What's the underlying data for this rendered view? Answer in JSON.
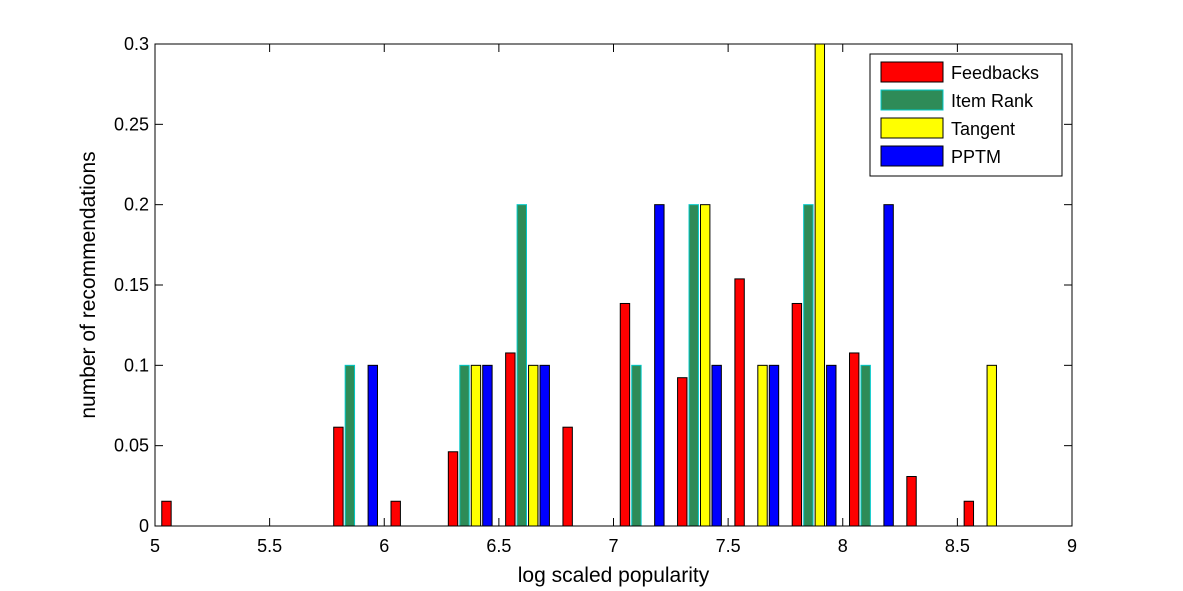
{
  "chart_data": {
    "type": "bar",
    "title": "",
    "xlabel": "log scaled popularity",
    "ylabel": "number of recommendations",
    "xlim": [
      5,
      9
    ],
    "ylim": [
      0,
      0.3
    ],
    "xticks": [
      "5",
      "5.5",
      "6",
      "6.5",
      "7",
      "7.5",
      "8",
      "8.5",
      "9"
    ],
    "yticks": [
      "0",
      "0.05",
      "0.1",
      "0.15",
      "0.2",
      "0.25",
      "0.3"
    ],
    "grid": false,
    "legend_position": "top-right",
    "bin_centers": [
      5.125,
      5.375,
      5.625,
      5.875,
      6.125,
      6.375,
      6.625,
      6.875,
      7.125,
      7.375,
      7.625,
      7.875,
      8.125,
      8.375,
      8.625,
      8.875
    ],
    "series": [
      {
        "name": "Feedbacks",
        "color": "#ff0000",
        "values": [
          0.0154,
          0,
          0,
          0.0615,
          0.0154,
          0.0462,
          0.1077,
          0.0615,
          0.1385,
          0.0923,
          0.1538,
          0.1385,
          0.1077,
          0.0308,
          0.0154,
          0
        ]
      },
      {
        "name": "Item Rank",
        "color": "#2e8b57",
        "edge": "#00c8c8",
        "values": [
          0,
          0,
          0,
          0.1,
          0,
          0.1,
          0.2,
          0,
          0.1,
          0.2,
          0,
          0.2,
          0.1,
          0,
          0,
          0
        ]
      },
      {
        "name": "Tangent",
        "color": "#ffff00",
        "values": [
          0,
          0,
          0,
          0,
          0,
          0.1,
          0.1,
          0,
          0,
          0.2,
          0.1,
          0.3,
          0,
          0,
          0.1,
          0
        ]
      },
      {
        "name": "PPTM",
        "color": "#0000ff",
        "values": [
          0,
          0,
          0,
          0.1,
          0,
          0.1,
          0.1,
          0,
          0.2,
          0.1,
          0.1,
          0.1,
          0.2,
          0,
          0,
          0
        ]
      }
    ]
  }
}
